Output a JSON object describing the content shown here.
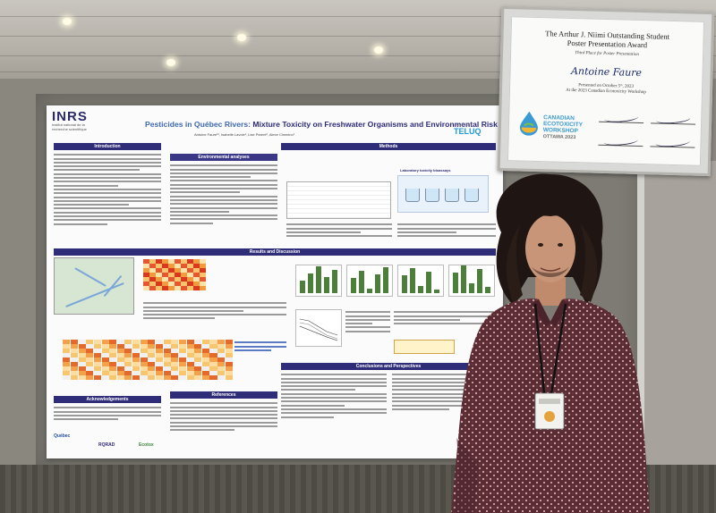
{
  "poster": {
    "logo_left": "INRS",
    "logo_left_sub": "Institut national de la recherche scientifique",
    "title_prefix": "Pesticides in Québec Rivers:",
    "title_rest": "Mixture Toxicity on Freshwater Organisms and Environmental Risk",
    "authors": "Antoine Faure¹², Isabelle Lavoie¹, Lise Parent², Alexe Cimmino¹",
    "logo_right": "TELUQ",
    "logo_right_sub": "UNIVERSITÉ",
    "sections": {
      "introduction": "Introduction",
      "methods": "Methods",
      "environmental_analyses": "Environmental analyses",
      "laboratory_toxicity": "Laboratory toxicity bioassays",
      "results": "Results and Discussion",
      "conclusions": "Conclusions and Perspectives",
      "acknowledgements": "Acknowledgements",
      "references": "References"
    },
    "sponsors": [
      "Québec",
      "RQRAD",
      "Ecotox"
    ]
  },
  "award": {
    "title_line1": "The Arthur J. Niimi Outstanding Student",
    "title_line2": "Poster Presentation Award",
    "place": "Third Place for Poster Presentation",
    "recipient": "Antoine Faure",
    "presented_line1": "Presented on October 5ᵗʰ, 2023",
    "presented_line2": "At the 2023 Canadian Ecotoxicity Workshop",
    "org_line1": "CANADIAN",
    "org_line2": "ECOTOXICITY",
    "org_line3": "WORKSHOP",
    "org_city": "OTTAWA 2023"
  },
  "colors": {
    "poster_header": "#2f2c78",
    "title_blue": "#2d2a7a",
    "teluq_blue": "#1f9bd7",
    "shirt": "#5b2b34"
  }
}
